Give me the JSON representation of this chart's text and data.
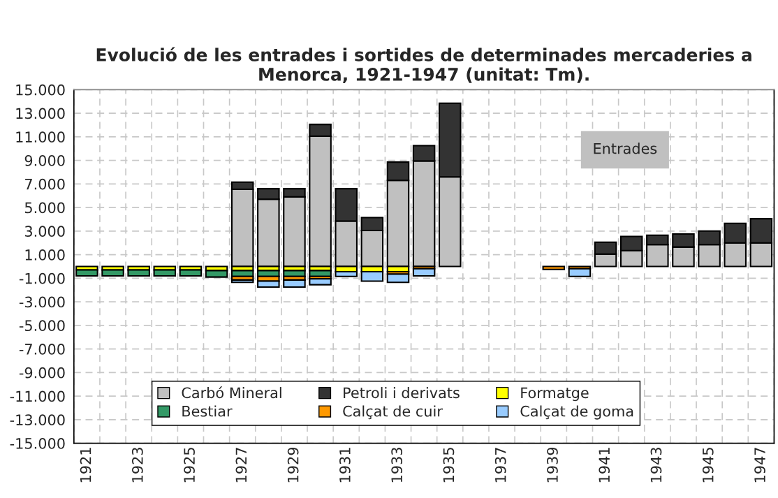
{
  "chart_data": {
    "type": "bar",
    "stacked": true,
    "title": "Evolució de les entrades i sortides de determinades mercaderies a Menorca, 1921-1947 (unitat: Tm).",
    "categories": [
      "1921",
      null,
      "1923",
      null,
      "1925",
      null,
      "1927",
      null,
      "1929",
      null,
      "1931",
      null,
      "1933",
      null,
      "1935",
      null,
      "1937",
      null,
      "1939",
      null,
      "1941",
      null,
      "1943",
      null,
      "1945",
      null,
      "1947"
    ],
    "series": [
      {
        "name": "Carbó Mineral",
        "color": "#c0c0c0",
        "values": [
          null,
          null,
          null,
          null,
          null,
          null,
          6550,
          5700,
          5900,
          11050,
          3850,
          3050,
          7300,
          8950,
          7600,
          null,
          null,
          null,
          null,
          null,
          1050,
          1350,
          1850,
          1650,
          1850,
          2000,
          2000
        ]
      },
      {
        "name": "Petroli i derivats",
        "color": "#333333",
        "values": [
          null,
          null,
          null,
          null,
          null,
          null,
          600,
          900,
          700,
          1000,
          2750,
          1100,
          1550,
          1300,
          6250,
          null,
          null,
          null,
          null,
          null,
          1000,
          1200,
          800,
          1100,
          1150,
          1650,
          2050
        ]
      },
      {
        "name": "Formatge",
        "color": "#ffff00",
        "values": [
          -300,
          -300,
          -300,
          -300,
          -300,
          -350,
          -350,
          -350,
          -350,
          -350,
          -450,
          -450,
          -450,
          null,
          null,
          null,
          null,
          null,
          null,
          null,
          null,
          null,
          null,
          null,
          null,
          null,
          null
        ]
      },
      {
        "name": "Bestiar",
        "color": "#339966",
        "values": [
          -500,
          -500,
          -500,
          -500,
          -500,
          -550,
          -500,
          -500,
          -500,
          -500,
          null,
          null,
          null,
          null,
          null,
          null,
          null,
          null,
          null,
          null,
          null,
          null,
          null,
          null,
          null,
          null,
          null
        ]
      },
      {
        "name": "Calçat de cuir",
        "color": "#ff9900",
        "values": [
          null,
          null,
          null,
          null,
          null,
          null,
          -300,
          -400,
          -300,
          -200,
          null,
          null,
          -200,
          -200,
          null,
          null,
          null,
          null,
          -250,
          -200,
          null,
          null,
          null,
          null,
          null,
          null,
          null
        ]
      },
      {
        "name": "Calçat de goma",
        "color": "#99ccff",
        "values": [
          null,
          null,
          null,
          null,
          null,
          null,
          -200,
          -500,
          -600,
          -500,
          -400,
          -800,
          -700,
          -600,
          null,
          null,
          null,
          null,
          null,
          -650,
          null,
          null,
          null,
          null,
          null,
          null,
          null
        ]
      }
    ],
    "ylim": [
      -15000,
      15000
    ],
    "yticks": [
      {
        "value": -15000,
        "label": "-15.000"
      },
      {
        "value": -13000,
        "label": "-13.000"
      },
      {
        "value": -11000,
        "label": "-11.000"
      },
      {
        "value": -9000,
        "label": "-9.000"
      },
      {
        "value": -7000,
        "label": "-7.000"
      },
      {
        "value": -5000,
        "label": "-5.000"
      },
      {
        "value": -3000,
        "label": "-3.000"
      },
      {
        "value": -1000,
        "label": "-1.000"
      },
      {
        "value": 1000,
        "label": "1.000"
      },
      {
        "value": 3000,
        "label": "3.000"
      },
      {
        "value": 5000,
        "label": "5.000"
      },
      {
        "value": 7000,
        "label": "7.000"
      },
      {
        "value": 9000,
        "label": "9.000"
      },
      {
        "value": 11000,
        "label": "11.000"
      },
      {
        "value": 13000,
        "label": "13.000"
      },
      {
        "value": 15000,
        "label": "15.000"
      }
    ],
    "grid": true,
    "legend": "bottom",
    "annotations": [
      "Entrades"
    ]
  }
}
